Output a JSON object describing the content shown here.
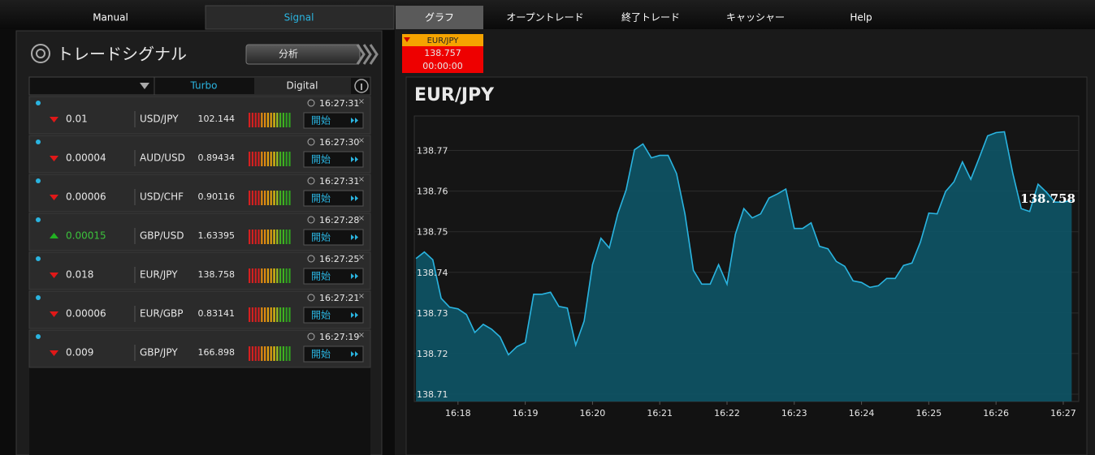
{
  "nav": [
    "Manual",
    "Signal",
    "グラフ",
    "オープントレード",
    "終了トレード",
    "キャッシャー",
    "Help"
  ],
  "signals": {
    "title": "トレードシグナル",
    "analysis_button": "分析",
    "tabs": [
      "Turbo",
      "Digital"
    ],
    "rows": [
      {
        "trend": "down",
        "change": "0.01",
        "pair": "USD/JPY",
        "price": "102.144",
        "time": "16:27:31",
        "button": "開始"
      },
      {
        "trend": "down",
        "change": "0.00004",
        "pair": "AUD/USD",
        "price": "0.89434",
        "time": "16:27:30",
        "button": "開始"
      },
      {
        "trend": "down",
        "change": "0.00006",
        "pair": "USD/CHF",
        "price": "0.90116",
        "time": "16:27:31",
        "button": "開始"
      },
      {
        "trend": "up",
        "change": "0.00015",
        "pair": "GBP/USD",
        "price": "1.63395",
        "time": "16:27:28",
        "button": "開始"
      },
      {
        "trend": "down",
        "change": "0.018",
        "pair": "EUR/JPY",
        "price": "138.758",
        "time": "16:27:25",
        "button": "開始"
      },
      {
        "trend": "down",
        "change": "0.00006",
        "pair": "EUR/GBP",
        "price": "0.83141",
        "time": "16:27:21",
        "button": "開始"
      },
      {
        "trend": "down",
        "change": "0.009",
        "pair": "GBP/JPY",
        "price": "166.898",
        "time": "16:27:19",
        "button": "開始"
      }
    ]
  },
  "ticker": {
    "pair": "EUR/JPY",
    "price": "138.757",
    "timer": "00:00:00"
  },
  "chart": {
    "type": "area",
    "title": "EUR/JPY",
    "last_label": "138.758",
    "color": "#2ab4e0",
    "fill": "#0d5466",
    "xlim": [
      977.35,
      987.23
    ],
    "ylim": [
      138.7082,
      138.7785
    ],
    "grid": true,
    "xticks": [
      {
        "value": 978,
        "label": "16:18"
      },
      {
        "value": 979,
        "label": "16:19"
      },
      {
        "value": 980,
        "label": "16:20"
      },
      {
        "value": 981,
        "label": "16:21"
      },
      {
        "value": 982,
        "label": "16:22"
      },
      {
        "value": 983,
        "label": "16:23"
      },
      {
        "value": 984,
        "label": "16:24"
      },
      {
        "value": 985,
        "label": "16:25"
      },
      {
        "value": 986,
        "label": "16:26"
      },
      {
        "value": 987,
        "label": "16:27"
      }
    ],
    "yticks": [
      138.71,
      138.72,
      138.73,
      138.74,
      138.75,
      138.76,
      138.77
    ],
    "x": [
      977.375,
      977.5,
      977.625,
      977.75,
      977.875,
      978,
      978.125,
      978.25,
      978.375,
      978.5,
      978.625,
      978.75,
      978.875,
      979,
      979.125,
      979.25,
      979.375,
      979.5,
      979.625,
      979.75,
      979.875,
      980,
      980.125,
      980.25,
      980.375,
      980.5,
      980.625,
      980.75,
      980.875,
      981,
      981.125,
      981.25,
      981.375,
      981.5,
      981.625,
      981.75,
      981.875,
      982,
      982.125,
      982.25,
      982.375,
      982.5,
      982.625,
      982.75,
      982.875,
      983,
      983.125,
      983.25,
      983.375,
      983.5,
      983.625,
      983.75,
      983.875,
      984,
      984.125,
      984.25,
      984.375,
      984.5,
      984.625,
      984.75,
      984.875,
      985,
      985.125,
      985.25,
      985.375,
      985.5,
      985.625,
      985.75,
      985.875,
      986,
      986.125,
      986.25,
      986.375,
      986.5,
      986.625,
      986.75,
      986.875,
      987,
      987.125
    ],
    "values": [
      138.7434,
      138.745,
      138.7431,
      138.7336,
      138.7314,
      138.731,
      138.7296,
      138.7252,
      138.7272,
      138.726,
      138.7241,
      138.7197,
      138.7217,
      138.7227,
      138.7346,
      138.7346,
      138.7351,
      138.7316,
      138.7312,
      138.7221,
      138.728,
      138.7419,
      138.7484,
      138.746,
      138.7544,
      138.7603,
      138.7702,
      138.7716,
      138.7682,
      138.7688,
      138.7688,
      138.7643,
      138.7544,
      138.7405,
      138.7371,
      138.7371,
      138.7419,
      138.7371,
      138.7494,
      138.7557,
      138.7534,
      138.7544,
      138.7583,
      138.7593,
      138.7605,
      138.7508,
      138.7508,
      138.7522,
      138.7464,
      138.7458,
      138.7427,
      138.7415,
      138.7379,
      138.7375,
      138.7363,
      138.7367,
      138.7385,
      138.7385,
      138.7417,
      138.7423,
      138.7474,
      138.7546,
      138.7544,
      138.7599,
      138.7623,
      138.7672,
      138.7629,
      138.7682,
      138.7736,
      138.7744,
      138.7746,
      138.7643,
      138.7557,
      138.755,
      138.7617,
      138.7597,
      138.7573,
      138.7573,
      138.7577
    ]
  }
}
